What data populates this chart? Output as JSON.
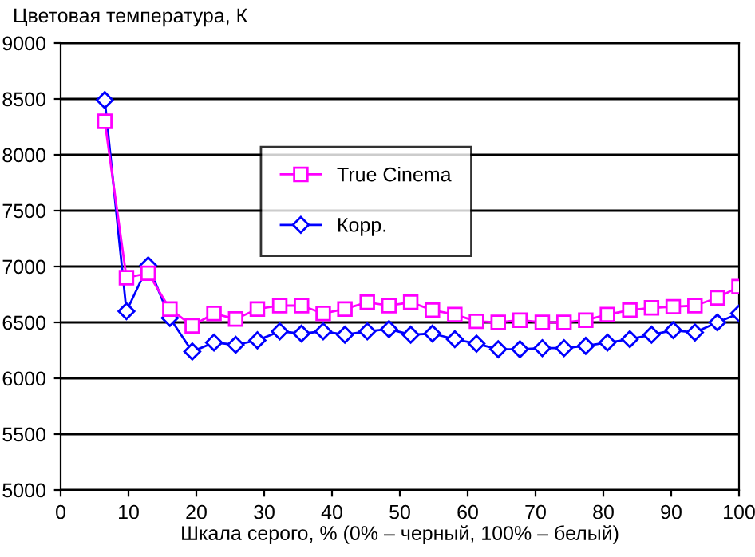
{
  "chart_data": {
    "type": "line",
    "ylabel": "Цветовая температура, К",
    "xlabel": "Шкала серого, % (0% – черный, 100% – белый)",
    "x": [
      6.5,
      9.7,
      12.9,
      16.1,
      19.4,
      22.6,
      25.8,
      29.0,
      32.3,
      35.5,
      38.7,
      41.9,
      45.2,
      48.4,
      51.6,
      54.8,
      58.1,
      61.3,
      64.5,
      67.7,
      71.0,
      74.2,
      77.4,
      80.6,
      83.9,
      87.1,
      90.3,
      93.5,
      96.8,
      100.0
    ],
    "series": [
      {
        "name": "True Cinema",
        "color": "#ff00ff",
        "marker": "square",
        "values": [
          8300,
          6900,
          6940,
          6620,
          6470,
          6580,
          6530,
          6620,
          6650,
          6650,
          6580,
          6620,
          6680,
          6650,
          6680,
          6610,
          6570,
          6510,
          6500,
          6520,
          6500,
          6500,
          6520,
          6570,
          6610,
          6630,
          6640,
          6650,
          6720,
          6820
        ]
      },
      {
        "name": "Корр.",
        "color": "#0000ff",
        "marker": "diamond",
        "values": [
          8490,
          6600,
          7010,
          6540,
          6240,
          6320,
          6300,
          6340,
          6420,
          6400,
          6420,
          6390,
          6420,
          6440,
          6390,
          6400,
          6350,
          6310,
          6260,
          6260,
          6270,
          6270,
          6290,
          6320,
          6350,
          6390,
          6430,
          6410,
          6500,
          6580
        ]
      }
    ],
    "xlim": [
      0,
      100
    ],
    "xticks": [
      0,
      10,
      20,
      30,
      40,
      50,
      60,
      70,
      80,
      90,
      100
    ],
    "ylim": [
      5000,
      9000
    ],
    "yticks": [
      5000,
      5500,
      6000,
      6500,
      7000,
      7500,
      8000,
      8500,
      9000
    ],
    "grid": "y",
    "legend": "top right",
    "line_style": "solid"
  }
}
